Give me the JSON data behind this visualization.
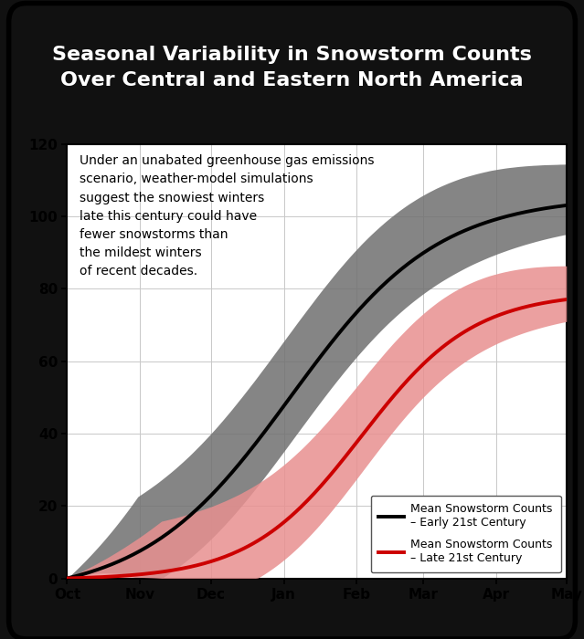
{
  "title_line1": "Seasonal Variability in Snowstorm Counts",
  "title_line2": "Over Central and Eastern North America",
  "title_color": "#ffffff",
  "outer_bg_color": "#111111",
  "plot_bg_color": "#ffffff",
  "annotation": "Under an unabated greenhouse gas emissions\nscenario, weather-model simulations\nsuggest the snowiest winters\nlate this century could have\nfewer snowstorms than\nthe mildest winters\nof recent decades.",
  "xlabel_ticks": [
    "Oct",
    "Nov",
    "Dec",
    "Jan",
    "Feb",
    "Mar",
    "Apr",
    "May"
  ],
  "ylim": [
    0,
    120
  ],
  "yticks": [
    0,
    20,
    40,
    60,
    80,
    100,
    120
  ],
  "grid_color": "#c8c8c8",
  "early_mean_color": "#000000",
  "late_mean_color": "#cc0000",
  "early_band_color": "#707070",
  "late_band_color": "#e89090",
  "early_band_alpha": 0.85,
  "late_band_alpha": 0.85,
  "legend_label_early_1": "Mean Snowstorm Counts",
  "legend_label_early_2": "– Early 21st Century",
  "legend_label_late_1": "Mean Snowstorm Counts",
  "legend_label_late_2": "– Late 21st Century",
  "line_width": 2.8,
  "n_points": 213,
  "month_ticks": [
    0,
    31,
    61,
    92,
    123,
    151,
    182,
    212
  ]
}
